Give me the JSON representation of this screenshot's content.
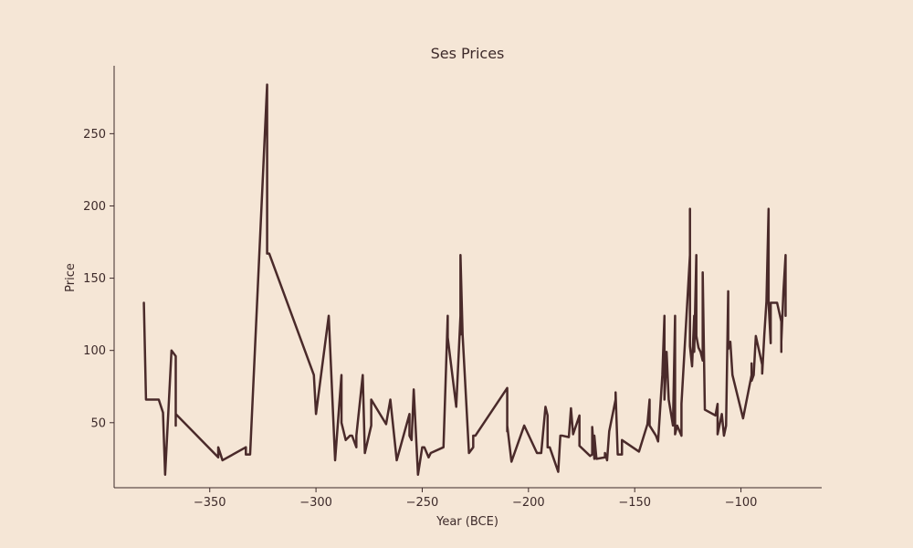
{
  "chart_data": {
    "type": "line",
    "title": "Ses Prices",
    "xlabel": "Year (BCE)",
    "ylabel": "Price",
    "xlim": [
      -395,
      -62
    ],
    "ylim": [
      5,
      297
    ],
    "x_ticks": [
      -350,
      -300,
      -250,
      -200,
      -150,
      -100
    ],
    "x_tick_labels": [
      "−350",
      "−300",
      "−250",
      "−200",
      "−150",
      "−100"
    ],
    "y_ticks": [
      50,
      100,
      150,
      200,
      250
    ],
    "y_tick_labels": [
      "50",
      "100",
      "150",
      "200",
      "250"
    ],
    "grid": false,
    "series": [
      {
        "color": "#4a2a2a",
        "points": [
          [
            -381,
            133
          ],
          [
            -380,
            66
          ],
          [
            -374,
            66
          ],
          [
            -372,
            57
          ],
          [
            -371,
            14
          ],
          [
            -368,
            100
          ],
          [
            -366,
            96
          ],
          [
            -366,
            48
          ],
          [
            -366,
            56
          ],
          [
            -346,
            26
          ],
          [
            -346,
            33
          ],
          [
            -344,
            24
          ],
          [
            -333,
            33
          ],
          [
            -333,
            28
          ],
          [
            -331,
            28
          ],
          [
            -323,
            284
          ],
          [
            -323,
            167
          ],
          [
            -322,
            167
          ],
          [
            -301,
            83
          ],
          [
            -300,
            56
          ],
          [
            -294,
            124
          ],
          [
            -291,
            24
          ],
          [
            -288,
            83
          ],
          [
            -288,
            50
          ],
          [
            -286,
            38
          ],
          [
            -284,
            41
          ],
          [
            -283,
            41
          ],
          [
            -281,
            33
          ],
          [
            -281,
            41
          ],
          [
            -278,
            83
          ],
          [
            -277,
            29
          ],
          [
            -274,
            48
          ],
          [
            -274,
            66
          ],
          [
            -267,
            49
          ],
          [
            -265,
            66
          ],
          [
            -262,
            24
          ],
          [
            -256,
            56
          ],
          [
            -256,
            41
          ],
          [
            -255,
            38
          ],
          [
            -254,
            73
          ],
          [
            -252,
            14
          ],
          [
            -250,
            33
          ],
          [
            -249,
            33
          ],
          [
            -247,
            26
          ],
          [
            -246,
            29
          ],
          [
            -240,
            33
          ],
          [
            -238,
            124
          ],
          [
            -238,
            109
          ],
          [
            -234,
            61
          ],
          [
            -232,
            124
          ],
          [
            -232,
            111
          ],
          [
            -232,
            166
          ],
          [
            -231,
            111
          ],
          [
            -228,
            29
          ],
          [
            -226,
            33
          ],
          [
            -226,
            41
          ],
          [
            -225,
            41
          ],
          [
            -210,
            74
          ],
          [
            -210,
            44
          ],
          [
            -210,
            48
          ],
          [
            -208,
            23
          ],
          [
            -202,
            48
          ],
          [
            -196,
            29
          ],
          [
            -194,
            29
          ],
          [
            -192,
            61
          ],
          [
            -191,
            55
          ],
          [
            -191,
            33
          ],
          [
            -190,
            33
          ],
          [
            -186,
            16
          ],
          [
            -185,
            41
          ],
          [
            -184,
            41
          ],
          [
            -181,
            40
          ],
          [
            -180,
            60
          ],
          [
            -179,
            42
          ],
          [
            -176,
            55
          ],
          [
            -176,
            34
          ],
          [
            -171,
            27
          ],
          [
            -170,
            28
          ],
          [
            -170,
            47
          ],
          [
            -169,
            25
          ],
          [
            -169,
            41
          ],
          [
            -168,
            25
          ],
          [
            -164,
            26
          ],
          [
            -164,
            29
          ],
          [
            -163,
            24
          ],
          [
            -162,
            44
          ],
          [
            -159,
            66
          ],
          [
            -159,
            71
          ],
          [
            -158,
            28
          ],
          [
            -156,
            28
          ],
          [
            -156,
            38
          ],
          [
            -148,
            30
          ],
          [
            -144,
            49
          ],
          [
            -143,
            66
          ],
          [
            -143,
            59
          ],
          [
            -143,
            48
          ],
          [
            -140,
            41
          ],
          [
            -139,
            37
          ],
          [
            -137,
            83
          ],
          [
            -136,
            124
          ],
          [
            -136,
            66
          ],
          [
            -135,
            99
          ],
          [
            -134,
            66
          ],
          [
            -132,
            48
          ],
          [
            -131,
            124
          ],
          [
            -131,
            42
          ],
          [
            -130,
            48
          ],
          [
            -128,
            41
          ],
          [
            -128,
            63
          ],
          [
            -124,
            166
          ],
          [
            -124,
            198
          ],
          [
            -124,
            103
          ],
          [
            -123,
            89
          ],
          [
            -122,
            124
          ],
          [
            -122,
            99
          ],
          [
            -121,
            166
          ],
          [
            -121,
            110
          ],
          [
            -120,
            102
          ],
          [
            -119,
            99
          ],
          [
            -118,
            93
          ],
          [
            -118,
            94
          ],
          [
            -118,
            154
          ],
          [
            -117,
            59
          ],
          [
            -112,
            55
          ],
          [
            -111,
            63
          ],
          [
            -111,
            42
          ],
          [
            -109,
            56
          ],
          [
            -108,
            41
          ],
          [
            -107,
            48
          ],
          [
            -106,
            141
          ],
          [
            -106,
            101
          ],
          [
            -105,
            106
          ],
          [
            -104,
            83
          ],
          [
            -99,
            53
          ],
          [
            -95,
            83
          ],
          [
            -95,
            91
          ],
          [
            -95,
            79
          ],
          [
            -94,
            83
          ],
          [
            -93,
            110
          ],
          [
            -90,
            90
          ],
          [
            -90,
            84
          ],
          [
            -89,
            111
          ],
          [
            -88,
            134
          ],
          [
            -87,
            198
          ],
          [
            -87,
            190
          ],
          [
            -87,
            133
          ],
          [
            -86,
            105
          ],
          [
            -86,
            133
          ],
          [
            -83,
            133
          ],
          [
            -81,
            120
          ],
          [
            -81,
            99
          ],
          [
            -81,
            106
          ],
          [
            -80,
            141
          ],
          [
            -79,
            166
          ],
          [
            -79,
            124
          ]
        ]
      }
    ]
  }
}
